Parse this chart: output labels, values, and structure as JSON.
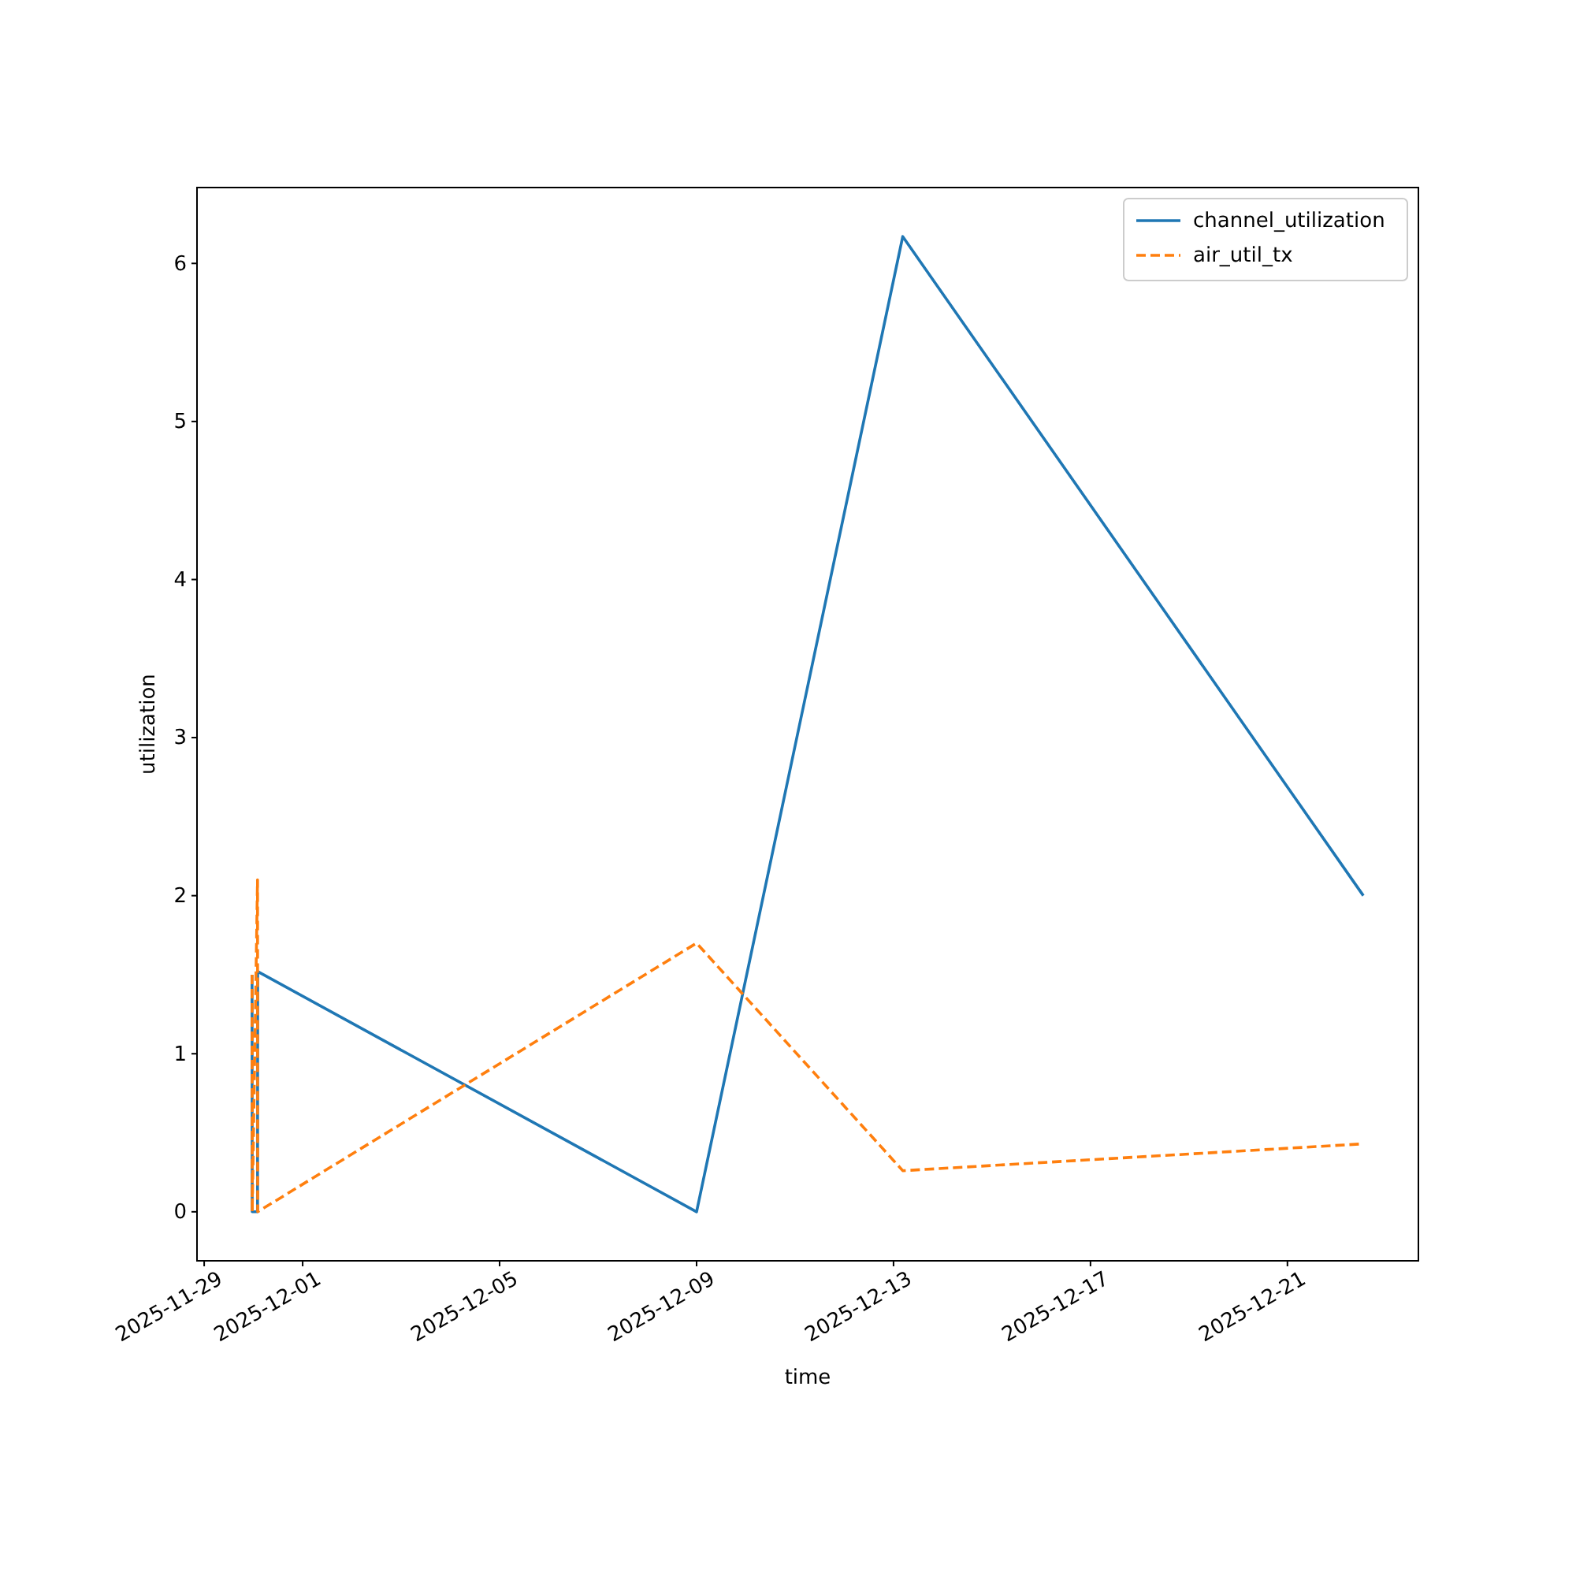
{
  "chart_data": {
    "type": "line",
    "xlabel": "time",
    "ylabel": "utilization",
    "xlim": [
      "2025-11-28T20:30",
      "2025-12-23T15:50"
    ],
    "xticks": [
      {
        "value": "2025-11-29",
        "label": "2025-11-29"
      },
      {
        "value": "2025-12-01",
        "label": "2025-12-01"
      },
      {
        "value": "2025-12-05",
        "label": "2025-12-05"
      },
      {
        "value": "2025-12-09",
        "label": "2025-12-09"
      },
      {
        "value": "2025-12-13",
        "label": "2025-12-13"
      },
      {
        "value": "2025-12-17",
        "label": "2025-12-17"
      },
      {
        "value": "2025-12-21",
        "label": "2025-12-21"
      }
    ],
    "ylim": [
      -0.31,
      6.48
    ],
    "yticks": [
      0,
      1,
      2,
      3,
      4,
      5,
      6
    ],
    "legend": "top right",
    "grid": false,
    "series": [
      {
        "name": "channel_utilization",
        "color": "#1f77b4",
        "line_style": "solid",
        "x": [
          "2025-11-29T23:20",
          "2025-11-29T23:25",
          "2025-11-30T02:00",
          "2025-11-30T02:05",
          "2025-12-09T00:00",
          "2025-12-13T04:30",
          "2025-12-22T13:00"
        ],
        "values": [
          1.5,
          0,
          0,
          1.52,
          0,
          6.17,
          2.0
        ]
      },
      {
        "name": "air_util_tx",
        "color": "#ff7f0e",
        "line_style": "dashed",
        "x": [
          "2025-11-29T23:20",
          "2025-11-29T23:25",
          "2025-11-30T02:00",
          "2025-11-30T02:05",
          "2025-12-09T00:00",
          "2025-12-13T04:30",
          "2025-12-22T13:00"
        ],
        "values": [
          1.5,
          0,
          2.1,
          0,
          1.7,
          0.26,
          0.43
        ]
      }
    ]
  }
}
